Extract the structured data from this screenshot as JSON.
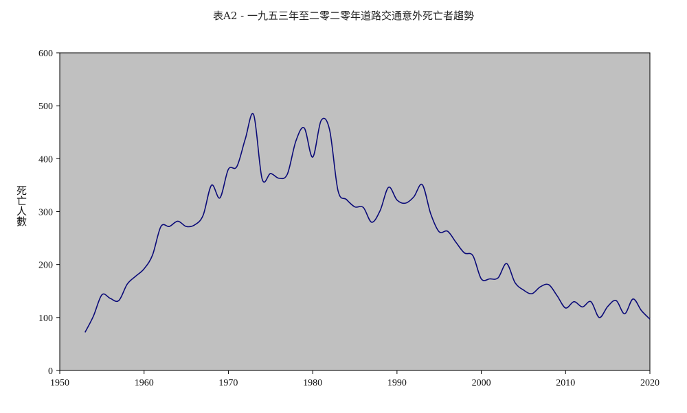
{
  "chart_data": {
    "type": "line",
    "title": "表A2 - 一九五三年至二零二零年道路交通意外死亡者趨勢",
    "xlabel": "",
    "ylabel": "死亡人數",
    "xlim": [
      1950,
      2020
    ],
    "ylim": [
      0,
      600
    ],
    "x_ticks": [
      1950,
      1960,
      1970,
      1980,
      1990,
      2000,
      2010,
      2020
    ],
    "y_ticks": [
      0,
      100,
      200,
      300,
      400,
      500,
      600
    ],
    "grid": false,
    "colors": {
      "plot_background": "#c0c0c0",
      "line": "#0a0a78"
    },
    "series": [
      {
        "x": [
          1953,
          1954,
          1955,
          1956,
          1957,
          1958,
          1959,
          1960,
          1961,
          1962,
          1963,
          1964,
          1965,
          1966,
          1967,
          1968,
          1969,
          1970,
          1971,
          1972,
          1973,
          1974,
          1975,
          1976,
          1977,
          1978,
          1979,
          1980,
          1981,
          1982,
          1983,
          1984,
          1985,
          1986,
          1987,
          1988,
          1989,
          1990,
          1991,
          1992,
          1993,
          1994,
          1995,
          1996,
          1997,
          1998,
          1999,
          2000,
          2001,
          2002,
          2003,
          2004,
          2005,
          2006,
          2007,
          2008,
          2009,
          2010,
          2011,
          2012,
          2013,
          2014,
          2015,
          2016,
          2017,
          2018,
          2019,
          2020
        ],
        "values": [
          72,
          103,
          143,
          136,
          132,
          163,
          178,
          192,
          218,
          272,
          272,
          282,
          272,
          275,
          293,
          350,
          326,
          380,
          385,
          437,
          483,
          362,
          372,
          363,
          371,
          433,
          458,
          403,
          472,
          455,
          340,
          323,
          309,
          308,
          280,
          302,
          346,
          322,
          316,
          328,
          351,
          296,
          262,
          263,
          242,
          222,
          217,
          173,
          173,
          175,
          202,
          166,
          152,
          145,
          158,
          162,
          141,
          118,
          130,
          120,
          130,
          100,
          121,
          132,
          107,
          135,
          113,
          97
        ]
      }
    ]
  }
}
